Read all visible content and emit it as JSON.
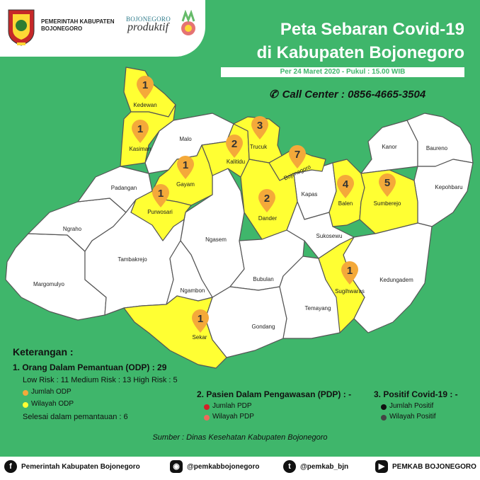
{
  "header": {
    "gov_name_line1": "PEMERINTAH KABUPATEN",
    "gov_name_line2": "BOJONEGORO",
    "brand_top": "BOJONEGORO",
    "brand_main": "produktif"
  },
  "title": {
    "line1": "Peta Sebaran Covid-19",
    "line2": "di Kabupaten Bojonegoro",
    "date": "Per 24 Maret 2020 - Pukul : 15.00 WIB",
    "call_center": "Call Center : 0856-4665-3504"
  },
  "colors": {
    "background": "#3fb66b",
    "odp_region": "#ffff33",
    "normal_region": "#ffffff",
    "marker": "#f4a93a",
    "pdp_jumlah": "#d32027",
    "pdp_wilayah": "#ee6a5c",
    "positif_jumlah": "#111111",
    "positif_wilayah": "#444444"
  },
  "regions": [
    {
      "name": "Kedewan",
      "odp": 1,
      "highlighted": true
    },
    {
      "name": "Kasiman",
      "odp": 1,
      "highlighted": true
    },
    {
      "name": "Malo",
      "odp": null,
      "highlighted": false
    },
    {
      "name": "Trucuk",
      "odp": 3,
      "highlighted": true
    },
    {
      "name": "Kalitidu",
      "odp": 2,
      "highlighted": true
    },
    {
      "name": "Gayam",
      "odp": 1,
      "highlighted": true
    },
    {
      "name": "Bojonegoro",
      "odp": 7,
      "highlighted": true
    },
    {
      "name": "Padangan",
      "odp": null,
      "highlighted": false
    },
    {
      "name": "Purwosari",
      "odp": 1,
      "highlighted": true
    },
    {
      "name": "Dander",
      "odp": 2,
      "highlighted": true
    },
    {
      "name": "Kapas",
      "odp": null,
      "highlighted": false
    },
    {
      "name": "Balen",
      "odp": 4,
      "highlighted": true
    },
    {
      "name": "Sumberejo",
      "odp": 5,
      "highlighted": true
    },
    {
      "name": "Kanor",
      "odp": null,
      "highlighted": false
    },
    {
      "name": "Baureno",
      "odp": null,
      "highlighted": false
    },
    {
      "name": "Kepohbaru",
      "odp": null,
      "highlighted": false
    },
    {
      "name": "Ngraho",
      "odp": null,
      "highlighted": false
    },
    {
      "name": "Tambakrejo",
      "odp": null,
      "highlighted": false
    },
    {
      "name": "Ngasem",
      "odp": null,
      "highlighted": false
    },
    {
      "name": "Sukosewu",
      "odp": null,
      "highlighted": false
    },
    {
      "name": "Margomulyo",
      "odp": null,
      "highlighted": false
    },
    {
      "name": "Ngambon",
      "odp": null,
      "highlighted": false
    },
    {
      "name": "Bubulan",
      "odp": null,
      "highlighted": false
    },
    {
      "name": "Sugihwaras",
      "odp": 1,
      "highlighted": true
    },
    {
      "name": "Kedungadem",
      "odp": null,
      "highlighted": false
    },
    {
      "name": "Temayang",
      "odp": null,
      "highlighted": false
    },
    {
      "name": "Sekar",
      "odp": 1,
      "highlighted": true
    },
    {
      "name": "Gondang",
      "odp": null,
      "highlighted": false
    }
  ],
  "legend": {
    "title": "Keterangan :",
    "odp_heading": "1. Orang Dalam Pemantuan (ODP) : 29",
    "odp_risk": "Low Risk : 11 Medium Risk : 13 High Risk : 5",
    "odp_jumlah": "Jumlah ODP",
    "odp_wilayah": "Wilayah ODP",
    "odp_done": "Selesai dalam pemantauan : 6",
    "pdp_heading": "2. Pasien Dalam Pengawasan (PDP) : -",
    "pdp_jumlah": "Jumlah PDP",
    "pdp_wilayah": "Wilayah PDP",
    "positif_heading": "3. Positif Covid-19 : -",
    "positif_jumlah": "Jumlah Positif",
    "positif_wilayah": "Wilayah Positif"
  },
  "source": "Sumber : Dinas Kesehatan Kabupaten Bojonegoro",
  "footer": {
    "facebook": "Pemerintah Kabupaten Bojonegoro",
    "instagram": "@pemkabbojonegoro",
    "twitter": "@pemkab_bjn",
    "youtube": "PEMKAB BOJONEGORO"
  }
}
